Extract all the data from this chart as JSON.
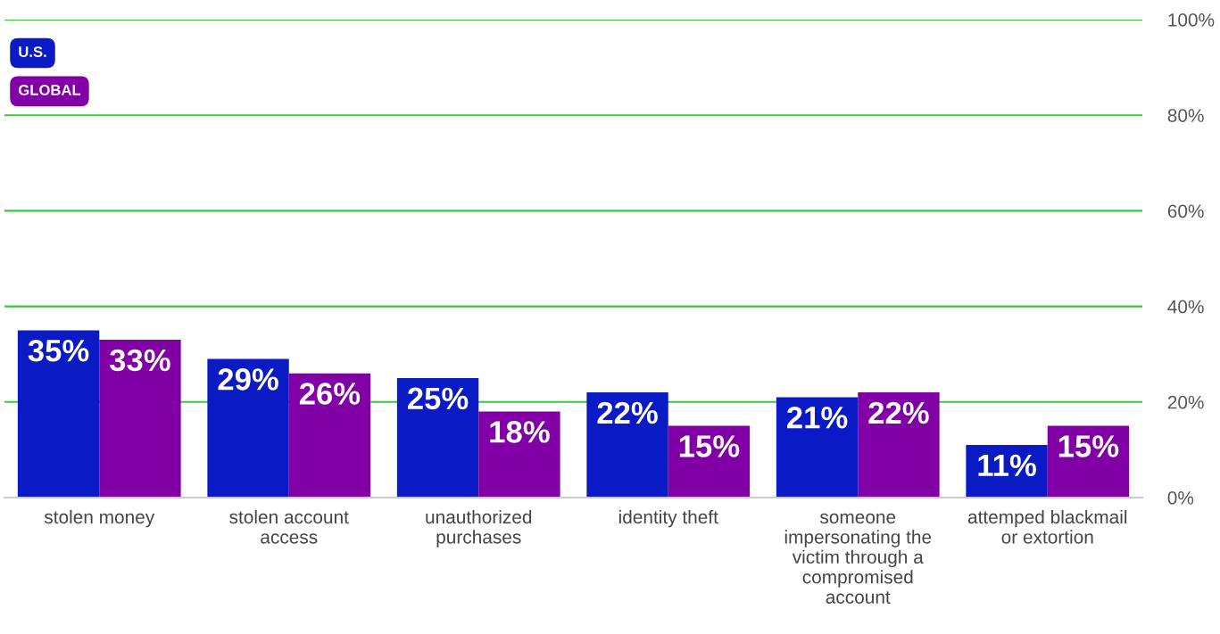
{
  "chart_data": {
    "type": "bar",
    "categories": [
      "stolen money",
      "stolen account access",
      "unauthorized purchases",
      "identity theft",
      "someone impersonating the victim through a compromised account",
      "attemped blackmail or extortion"
    ],
    "series": [
      {
        "name": "U.S.",
        "color": "#0a1ac4",
        "values": [
          35,
          29,
          25,
          22,
          21,
          11
        ],
        "value_labels": [
          "35%",
          "29%",
          "25%",
          "22%",
          "21%",
          "11%"
        ]
      },
      {
        "name": "GLOBAL",
        "color": "#8100a6",
        "values": [
          33,
          26,
          18,
          15,
          22,
          15
        ],
        "value_labels": [
          "33%",
          "26%",
          "18%",
          "15%",
          "22%",
          "15%"
        ]
      }
    ],
    "ylim": [
      0,
      100
    ],
    "yticks": [
      {
        "value": 0,
        "label": "0%"
      },
      {
        "value": 20,
        "label": "20%"
      },
      {
        "value": 40,
        "label": "40%"
      },
      {
        "value": 60,
        "label": "60%"
      },
      {
        "value": 80,
        "label": "80%"
      },
      {
        "value": 100,
        "label": "100%"
      }
    ],
    "grid": "y",
    "legend": "top left"
  }
}
